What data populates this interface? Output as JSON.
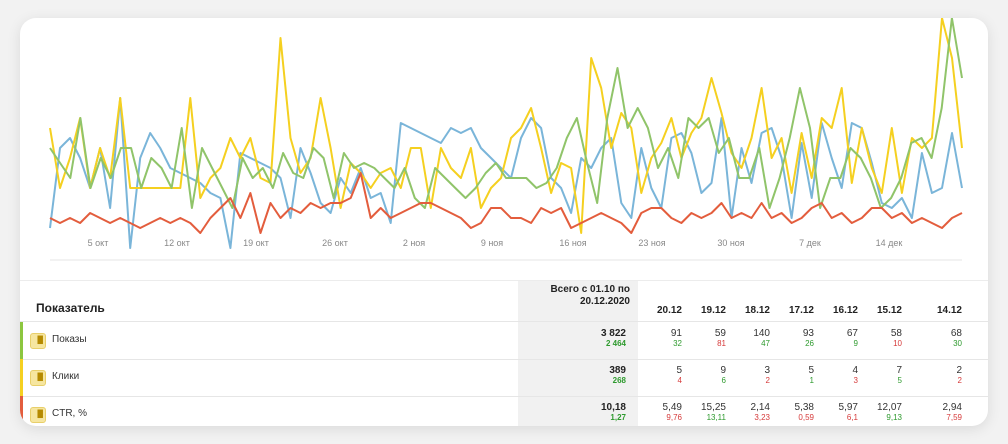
{
  "chart_data": {
    "type": "line",
    "x_tick_labels": [
      "5 окт",
      "12 окт",
      "19 окт",
      "26 окт",
      "2 ноя",
      "9 ноя",
      "16 ноя",
      "23 ноя",
      "30 ноя",
      "7 дек",
      "14 дек"
    ],
    "series": [
      {
        "color": "#7ab5d9",
        "values": [
          210,
          130,
          120,
          140,
          170,
          130,
          190,
          80,
          230,
          140,
          115,
          130,
          150,
          155,
          160,
          165,
          175,
          180,
          230,
          135,
          140,
          145,
          150,
          160,
          200,
          130,
          155,
          185,
          195,
          160,
          175,
          150,
          180,
          175,
          205,
          105,
          110,
          115,
          120,
          125,
          110,
          115,
          110,
          130,
          140,
          150,
          160,
          120,
          100,
          110,
          160,
          170,
          195,
          140,
          150,
          130,
          120,
          185,
          200,
          130,
          170,
          190,
          120,
          115,
          135,
          175,
          165,
          100,
          200,
          130,
          165,
          115,
          110,
          140,
          200,
          125,
          180,
          105,
          140,
          170,
          105,
          110,
          145,
          185,
          190,
          180,
          200,
          135,
          175,
          170,
          115,
          170
        ]
      },
      {
        "color": "#f5d020",
        "values": [
          110,
          170,
          140,
          100,
          170,
          130,
          160,
          80,
          170,
          170,
          170,
          170,
          170,
          170,
          80,
          180,
          160,
          150,
          120,
          140,
          120,
          160,
          165,
          20,
          120,
          155,
          140,
          80,
          130,
          190,
          145,
          155,
          170,
          155,
          150,
          170,
          130,
          130,
          190,
          130,
          150,
          160,
          130,
          190,
          170,
          160,
          120,
          110,
          90,
          130,
          175,
          145,
          150,
          215,
          40,
          70,
          130,
          95,
          110,
          175,
          140,
          125,
          100,
          140,
          115,
          100,
          60,
          95,
          135,
          150,
          120,
          70,
          140,
          120,
          175,
          115,
          160,
          100,
          110,
          70,
          165,
          110,
          150,
          175,
          110,
          175,
          120,
          130,
          120,
          0,
          40,
          130
        ]
      },
      {
        "color": "#90c46a",
        "values": [
          130,
          145,
          160,
          100,
          170,
          140,
          160,
          130,
          130,
          170,
          140,
          150,
          170,
          110,
          190,
          130,
          150,
          170,
          190,
          140,
          160,
          150,
          170,
          135,
          155,
          160,
          130,
          140,
          180,
          135,
          150,
          145,
          150,
          160,
          170,
          150,
          180,
          190,
          150,
          160,
          170,
          180,
          170,
          155,
          145,
          160,
          160,
          160,
          170,
          165,
          150,
          120,
          100,
          145,
          185,
          100,
          50,
          110,
          90,
          110,
          150,
          130,
          160,
          100,
          110,
          100,
          135,
          120,
          160,
          160,
          130,
          190,
          160,
          120,
          70,
          110,
          190,
          160,
          160,
          130,
          140,
          160,
          190,
          180,
          160,
          125,
          120,
          140,
          90,
          0,
          60
        ]
      },
      {
        "color": "#e35d3d",
        "values": [
          200,
          205,
          200,
          205,
          195,
          200,
          205,
          200,
          205,
          210,
          205,
          200,
          205,
          200,
          205,
          215,
          200,
          190,
          180,
          200,
          175,
          215,
          185,
          200,
          190,
          195,
          185,
          190,
          185,
          185,
          180,
          155,
          200,
          190,
          200,
          195,
          190,
          185,
          185,
          190,
          195,
          200,
          210,
          205,
          190,
          190,
          200,
          200,
          205,
          190,
          195,
          190,
          210,
          205,
          200,
          195,
          200,
          205,
          215,
          195,
          190,
          190,
          200,
          205,
          195,
          200,
          195,
          185,
          200,
          195,
          200,
          185,
          200,
          195,
          205,
          200,
          190,
          185,
          200,
          195,
          205,
          200,
          190,
          190,
          200,
          195,
          205,
          200,
          205,
          210,
          200,
          195
        ]
      }
    ],
    "grid": false
  },
  "table": {
    "metric_header": "Показатель",
    "total_header_line1": "Всего с 01.10 по",
    "total_header_line2": "20.12.2020",
    "dates": [
      "20.12",
      "19.12",
      "18.12",
      "17.12",
      "16.12",
      "15.12",
      "14.12"
    ],
    "rows": [
      {
        "label": "Показы",
        "bar_color": "#8cc63f",
        "total": "3 822",
        "total_sub": "2 464",
        "cells": [
          {
            "v": "91",
            "s": "32",
            "c": "green"
          },
          {
            "v": "59",
            "s": "81",
            "c": "red"
          },
          {
            "v": "140",
            "s": "47",
            "c": "green"
          },
          {
            "v": "93",
            "s": "26",
            "c": "green"
          },
          {
            "v": "67",
            "s": "9",
            "c": "green"
          },
          {
            "v": "58",
            "s": "10",
            "c": "red"
          },
          {
            "v": "68",
            "s": "30",
            "c": "green"
          }
        ]
      },
      {
        "label": "Клики",
        "bar_color": "#f5d020",
        "total": "389",
        "total_sub": "268",
        "cells": [
          {
            "v": "5",
            "s": "4",
            "c": "red"
          },
          {
            "v": "9",
            "s": "6",
            "c": "green"
          },
          {
            "v": "3",
            "s": "2",
            "c": "red"
          },
          {
            "v": "5",
            "s": "1",
            "c": "green"
          },
          {
            "v": "4",
            "s": "3",
            "c": "red"
          },
          {
            "v": "7",
            "s": "5",
            "c": "green"
          },
          {
            "v": "2",
            "s": "2",
            "c": "red"
          }
        ]
      },
      {
        "label": "CTR, %",
        "bar_color": "#e35d3d",
        "total": "10,18",
        "total_sub": "1,27",
        "cells": [
          {
            "v": "5,49",
            "s": "9,76",
            "c": "red"
          },
          {
            "v": "15,25",
            "s": "13,11",
            "c": "green"
          },
          {
            "v": "2,14",
            "s": "3,23",
            "c": "red"
          },
          {
            "v": "5,38",
            "s": "0,59",
            "c": "red"
          },
          {
            "v": "5,97",
            "s": "6,1",
            "c": "red"
          },
          {
            "v": "12,07",
            "s": "9,13",
            "c": "green"
          },
          {
            "v": "2,94",
            "s": "7,59",
            "c": "red"
          }
        ]
      }
    ]
  },
  "icons": {
    "row_icon": "bar-chart-icon"
  }
}
